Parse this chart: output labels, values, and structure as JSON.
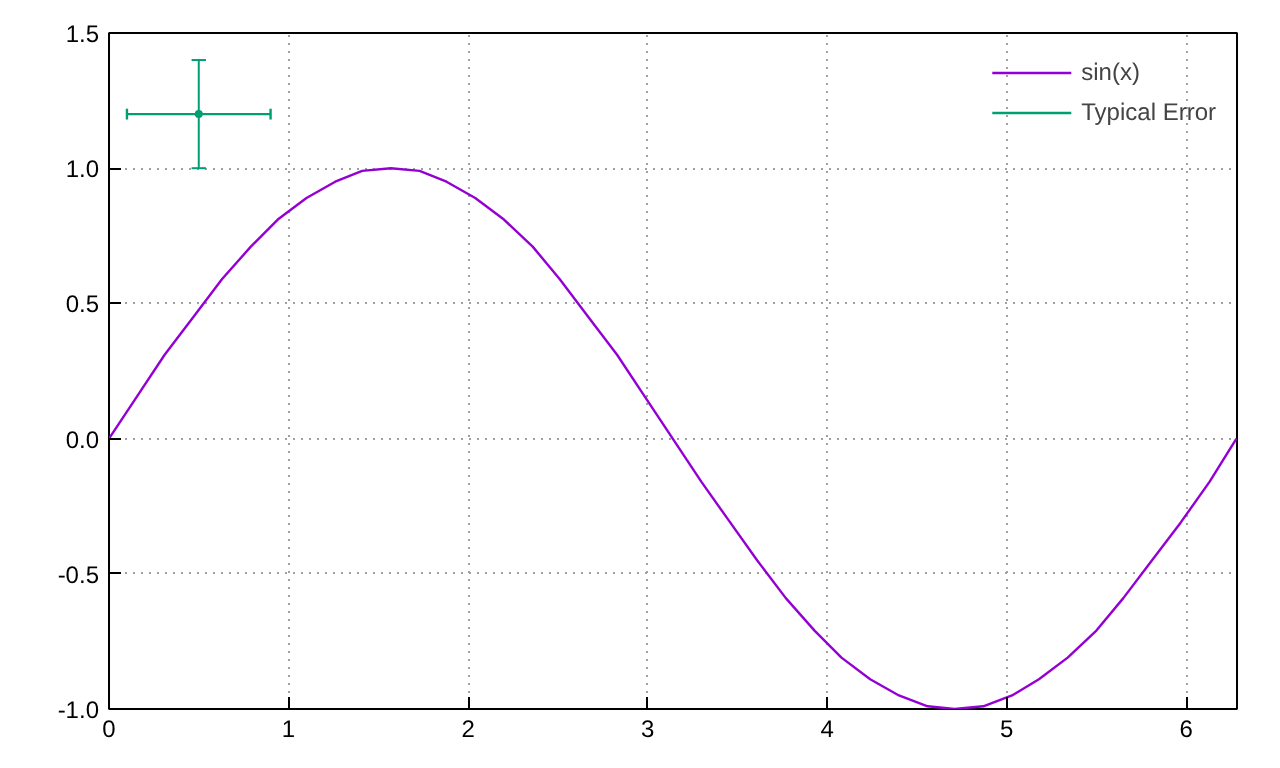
{
  "chart_data": {
    "type": "line",
    "xlim": [
      0,
      6.2832
    ],
    "ylim": [
      -1,
      1.5
    ],
    "xticks": [
      0,
      1,
      2,
      3,
      4,
      5,
      6
    ],
    "yticks": [
      {
        "value": -1,
        "label": "-1.0"
      },
      {
        "value": -0.5,
        "label": "-0.5"
      },
      {
        "value": 0,
        "label": "0.0"
      },
      {
        "value": 0.5,
        "label": "0.5"
      },
      {
        "value": 1,
        "label": "1.0"
      },
      {
        "value": 1.5,
        "label": "1.5"
      }
    ],
    "grid": true,
    "legend": "top right",
    "marker": "none",
    "series": [
      {
        "name": "sin(x)",
        "color": "#9400d3",
        "x": [
          0,
          0.16,
          0.31,
          0.47,
          0.63,
          0.79,
          0.94,
          1.1,
          1.26,
          1.41,
          1.57,
          1.73,
          1.88,
          2.04,
          2.2,
          2.36,
          2.51,
          2.67,
          2.83,
          2.98,
          3.14,
          3.3,
          3.46,
          3.61,
          3.77,
          3.93,
          4.08,
          4.24,
          4.4,
          4.56,
          4.71,
          4.87,
          5.03,
          5.18,
          5.34,
          5.5,
          5.65,
          5.81,
          5.97,
          6.13,
          6.28
        ],
        "values": [
          0,
          0.16,
          0.31,
          0.45,
          0.59,
          0.71,
          0.81,
          0.89,
          0.95,
          0.99,
          1,
          0.99,
          0.95,
          0.89,
          0.81,
          0.71,
          0.59,
          0.45,
          0.31,
          0.16,
          0,
          -0.16,
          -0.31,
          -0.45,
          -0.59,
          -0.71,
          -0.81,
          -0.89,
          -0.95,
          -0.99,
          -1,
          -0.99,
          -0.95,
          -0.89,
          -0.81,
          -0.71,
          -0.59,
          -0.45,
          -0.31,
          -0.16,
          0
        ]
      },
      {
        "name": "Typical Error",
        "type": "scatter",
        "color": "#009e73",
        "x": [
          0.5
        ],
        "values": [
          1.2
        ],
        "errors": [
          0.2
        ],
        "xerrors": [
          0.4
        ]
      }
    ]
  }
}
